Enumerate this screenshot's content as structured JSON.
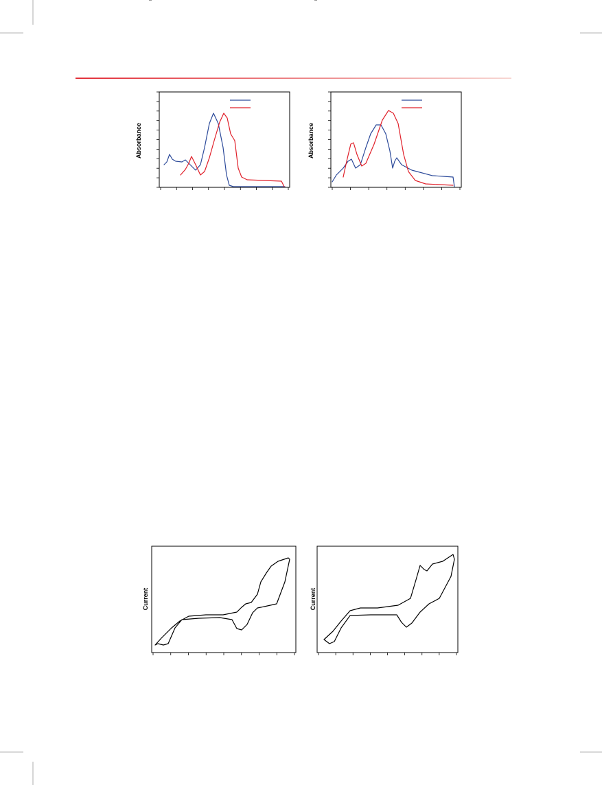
{
  "figures": {
    "top_left": {
      "y_label": "Absorbance"
    },
    "top_right": {
      "y_label": "Absorbance"
    },
    "bottom_left": {
      "y_label": "Current"
    },
    "bottom_right": {
      "y_label": "Current"
    }
  }
}
